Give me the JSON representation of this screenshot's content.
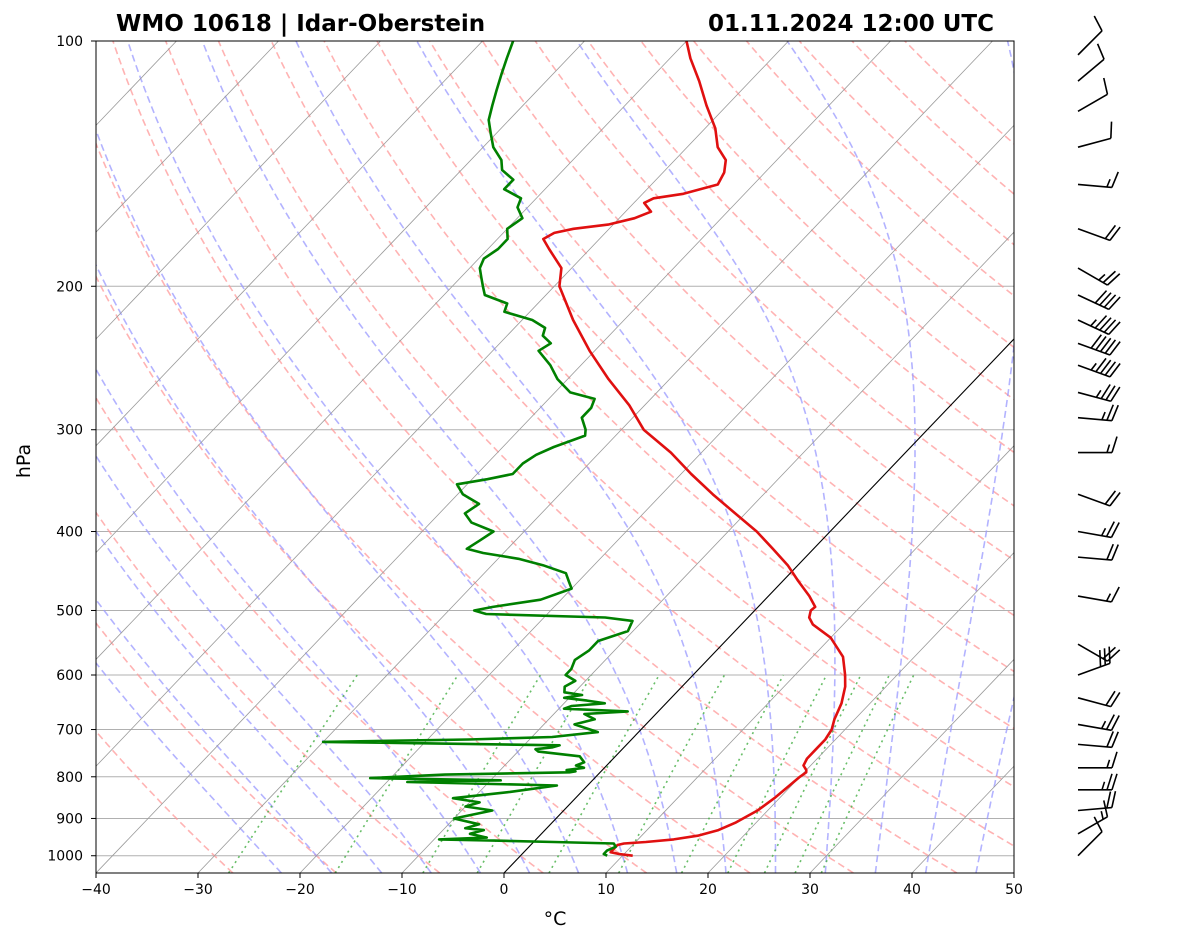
{
  "header": {
    "station_title": "WMO 10618 | Idar-Oberstein",
    "time_title": "01.11.2024 12:00 UTC"
  },
  "chart_data": {
    "type": "line",
    "subtype": "skew-T log-p diagram",
    "xlabel": "°C",
    "ylabel": "hPa",
    "xlim": [
      -40,
      50
    ],
    "ylim": [
      1050,
      100
    ],
    "y_scale": "log",
    "x_ticks": [
      "−40",
      "−30",
      "−20",
      "−10",
      "0",
      "10",
      "20",
      "30",
      "40",
      "50"
    ],
    "y_ticks": [
      "100",
      "200",
      "300",
      "400",
      "500",
      "600",
      "700",
      "800",
      "900",
      "1000"
    ],
    "grid": true,
    "reference_lines": {
      "isotherms_degC": [
        -120,
        -110,
        -100,
        -90,
        -80,
        -70,
        -60,
        -50,
        -40,
        -30,
        -20,
        -10,
        0,
        10,
        20,
        30,
        40,
        50
      ],
      "highlighted_isotherm_degC": 0,
      "dry_adiabats_theta_degC": [
        -30,
        -20,
        -10,
        0,
        10,
        20,
        30,
        40,
        50,
        60,
        70,
        80,
        90,
        100,
        110,
        120,
        130,
        140,
        150,
        160,
        170,
        180
      ],
      "moist_adiabats_degC": [
        -25,
        -20,
        -15,
        -10,
        -5,
        0,
        5,
        10,
        15,
        20,
        25,
        30,
        35,
        40,
        45,
        50
      ],
      "mixing_ratio_lines_gkg": [
        0.4,
        1,
        2,
        3,
        5,
        8,
        12,
        16,
        20,
        24,
        28
      ],
      "colors": {
        "isotherm": "#a9a9a9",
        "dry_adiabat": "#ff9999",
        "moist_adiabat": "#9999ff",
        "mixing_ratio": "#4db34d",
        "zero_isotherm": "#000000"
      }
    },
    "series": [
      {
        "role": "temperature",
        "color": "#e01010",
        "points": [
          [
            1000,
            11.0
          ],
          [
            995,
            9.5
          ],
          [
            990,
            8.5
          ],
          [
            980,
            8.5
          ],
          [
            970,
            8.5
          ],
          [
            966,
            9.0
          ],
          [
            962,
            11.0
          ],
          [
            955,
            13.5
          ],
          [
            945,
            15.5
          ],
          [
            930,
            17.0
          ],
          [
            910,
            18.0
          ],
          [
            880,
            19.0
          ],
          [
            850,
            19.5
          ],
          [
            820,
            19.8
          ],
          [
            800,
            20.0
          ],
          [
            790,
            20.2
          ],
          [
            785,
            20.0
          ],
          [
            775,
            19.3
          ],
          [
            760,
            19.0
          ],
          [
            740,
            19.0
          ],
          [
            720,
            19.0
          ],
          [
            700,
            18.7
          ],
          [
            680,
            18.0
          ],
          [
            650,
            17.2
          ],
          [
            620,
            16.0
          ],
          [
            600,
            14.9
          ],
          [
            570,
            13.0
          ],
          [
            540,
            10.0
          ],
          [
            520,
            7.0
          ],
          [
            510,
            6.0
          ],
          [
            500,
            5.5
          ],
          [
            495,
            5.6
          ],
          [
            480,
            4.0
          ],
          [
            460,
            1.5
          ],
          [
            440,
            -1.0
          ],
          [
            420,
            -4.0
          ],
          [
            400,
            -7.2
          ],
          [
            380,
            -11.0
          ],
          [
            360,
            -15.0
          ],
          [
            340,
            -19.0
          ],
          [
            320,
            -23.0
          ],
          [
            300,
            -27.8
          ],
          [
            280,
            -31.5
          ],
          [
            260,
            -36.0
          ],
          [
            240,
            -40.5
          ],
          [
            220,
            -45.0
          ],
          [
            200,
            -49.5
          ],
          [
            190,
            -51.0
          ],
          [
            180,
            -54.0
          ],
          [
            175,
            -55.5
          ],
          [
            172,
            -55.0
          ],
          [
            170,
            -53.5
          ],
          [
            168,
            -50.5
          ],
          [
            165,
            -48.5
          ],
          [
            162,
            -47.5
          ],
          [
            158,
            -49.0
          ],
          [
            156,
            -48.5
          ],
          [
            154,
            -46.0
          ],
          [
            150,
            -43.5
          ],
          [
            145,
            -44.0
          ],
          [
            140,
            -45.0
          ],
          [
            135,
            -47.0
          ],
          [
            128,
            -49.0
          ],
          [
            120,
            -52.0
          ],
          [
            112,
            -55.0
          ],
          [
            105,
            -58.0
          ],
          [
            100,
            -60.0
          ]
        ]
      },
      {
        "role": "dewpoint",
        "color": "#008000",
        "points": [
          [
            1000,
            8.5
          ],
          [
            995,
            8.0
          ],
          [
            985,
            8.0
          ],
          [
            975,
            8.5
          ],
          [
            966,
            8.0
          ],
          [
            962,
            2.0
          ],
          [
            958,
            -4.0
          ],
          [
            955,
            -9.5
          ],
          [
            950,
            -5.0
          ],
          [
            940,
            -7.0
          ],
          [
            930,
            -6.0
          ],
          [
            925,
            -8.0
          ],
          [
            915,
            -7.0
          ],
          [
            900,
            -10.0
          ],
          [
            880,
            -7.0
          ],
          [
            870,
            -10.0
          ],
          [
            860,
            -9.0
          ],
          [
            850,
            -12.0
          ],
          [
            835,
            -7.0
          ],
          [
            820,
            -3.0
          ],
          [
            812,
            -18.0
          ],
          [
            808,
            -9.0
          ],
          [
            803,
            -22.0
          ],
          [
            795,
            -15.0
          ],
          [
            790,
            -3.0
          ],
          [
            788,
            -2.5
          ],
          [
            785,
            -3.5
          ],
          [
            780,
            -2.0
          ],
          [
            775,
            -3.0
          ],
          [
            768,
            -2.5
          ],
          [
            755,
            -3.5
          ],
          [
            745,
            -8.0
          ],
          [
            740,
            -8.5
          ],
          [
            736,
            -7.0
          ],
          [
            732,
            -6.5
          ],
          [
            725,
            -30.0
          ],
          [
            720,
            -16.0
          ],
          [
            715,
            -8.0
          ],
          [
            705,
            -4.0
          ],
          [
            700,
            -5.0
          ],
          [
            690,
            -7.0
          ],
          [
            680,
            -5.5
          ],
          [
            670,
            -7.0
          ],
          [
            665,
            -3.0
          ],
          [
            660,
            -9.5
          ],
          [
            655,
            -9.0
          ],
          [
            650,
            -6.0
          ],
          [
            645,
            -8.0
          ],
          [
            640,
            -10.5
          ],
          [
            635,
            -9.0
          ],
          [
            630,
            -11.0
          ],
          [
            620,
            -11.5
          ],
          [
            610,
            -11.0
          ],
          [
            600,
            -12.5
          ],
          [
            590,
            -12.5
          ],
          [
            575,
            -13.0
          ],
          [
            560,
            -12.5
          ],
          [
            545,
            -12.5
          ],
          [
            530,
            -10.5
          ],
          [
            515,
            -11.0
          ],
          [
            510,
            -14.0
          ],
          [
            505,
            -26.0
          ],
          [
            500,
            -27.5
          ],
          [
            495,
            -26.0
          ],
          [
            485,
            -22.0
          ],
          [
            470,
            -20.0
          ],
          [
            460,
            -21.0
          ],
          [
            450,
            -22.0
          ],
          [
            440,
            -25.0
          ],
          [
            432,
            -28.0
          ],
          [
            425,
            -32.0
          ],
          [
            420,
            -34.0
          ],
          [
            410,
            -33.5
          ],
          [
            400,
            -33.0
          ],
          [
            390,
            -36.0
          ],
          [
            380,
            -37.5
          ],
          [
            370,
            -37.0
          ],
          [
            360,
            -39.5
          ],
          [
            350,
            -41.0
          ],
          [
            345,
            -38.5
          ],
          [
            340,
            -36.5
          ],
          [
            330,
            -36.5
          ],
          [
            322,
            -36.0
          ],
          [
            315,
            -35.0
          ],
          [
            305,
            -33.0
          ],
          [
            300,
            -33.5
          ],
          [
            290,
            -35.0
          ],
          [
            282,
            -35.0
          ],
          [
            275,
            -35.5
          ],
          [
            270,
            -38.5
          ],
          [
            260,
            -41.0
          ],
          [
            250,
            -43.0
          ],
          [
            240,
            -45.5
          ],
          [
            235,
            -45.0
          ],
          [
            230,
            -46.5
          ],
          [
            225,
            -47.0
          ],
          [
            220,
            -49.0
          ],
          [
            215,
            -52.5
          ],
          [
            210,
            -53.0
          ],
          [
            205,
            -56.0
          ],
          [
            200,
            -57.0
          ],
          [
            195,
            -58.0
          ],
          [
            190,
            -59.0
          ],
          [
            185,
            -59.5
          ],
          [
            180,
            -59.0
          ],
          [
            175,
            -59.0
          ],
          [
            170,
            -60.0
          ],
          [
            165,
            -59.5
          ],
          [
            160,
            -61.0
          ],
          [
            156,
            -61.5
          ],
          [
            152,
            -64.0
          ],
          [
            148,
            -64.0
          ],
          [
            144,
            -66.0
          ],
          [
            140,
            -67.0
          ],
          [
            135,
            -69.0
          ],
          [
            130,
            -70.5
          ],
          [
            125,
            -72.0
          ],
          [
            120,
            -73.0
          ],
          [
            115,
            -74.0
          ],
          [
            110,
            -75.0
          ],
          [
            105,
            -76.0
          ],
          [
            100,
            -77.0
          ]
        ]
      }
    ],
    "wind_barbs": [
      {
        "p": 1000,
        "dir_deg": 225,
        "speed_kt": 10
      },
      {
        "p": 940,
        "dir_deg": 240,
        "speed_kt": 15
      },
      {
        "p": 880,
        "dir_deg": 265,
        "speed_kt": 20
      },
      {
        "p": 830,
        "dir_deg": 270,
        "speed_kt": 25
      },
      {
        "p": 780,
        "dir_deg": 270,
        "speed_kt": 15
      },
      {
        "p": 730,
        "dir_deg": 275,
        "speed_kt": 20
      },
      {
        "p": 690,
        "dir_deg": 280,
        "speed_kt": 25
      },
      {
        "p": 640,
        "dir_deg": 285,
        "speed_kt": 20
      },
      {
        "p": 600,
        "dir_deg": 250,
        "speed_kt": 30
      },
      {
        "p": 550,
        "dir_deg": 300,
        "speed_kt": 20
      },
      {
        "p": 480,
        "dir_deg": 280,
        "speed_kt": 15
      },
      {
        "p": 430,
        "dir_deg": 275,
        "speed_kt": 20
      },
      {
        "p": 400,
        "dir_deg": 280,
        "speed_kt": 25
      },
      {
        "p": 360,
        "dir_deg": 290,
        "speed_kt": 20
      },
      {
        "p": 320,
        "dir_deg": 270,
        "speed_kt": 15
      },
      {
        "p": 290,
        "dir_deg": 275,
        "speed_kt": 25
      },
      {
        "p": 270,
        "dir_deg": 285,
        "speed_kt": 35
      },
      {
        "p": 250,
        "dir_deg": 290,
        "speed_kt": 45
      },
      {
        "p": 235,
        "dir_deg": 290,
        "speed_kt": 50
      },
      {
        "p": 220,
        "dir_deg": 295,
        "speed_kt": 45
      },
      {
        "p": 205,
        "dir_deg": 295,
        "speed_kt": 40
      },
      {
        "p": 190,
        "dir_deg": 300,
        "speed_kt": 25
      },
      {
        "p": 170,
        "dir_deg": 290,
        "speed_kt": 20
      },
      {
        "p": 150,
        "dir_deg": 275,
        "speed_kt": 15
      },
      {
        "p": 135,
        "dir_deg": 255,
        "speed_kt": 10
      },
      {
        "p": 122,
        "dir_deg": 240,
        "speed_kt": 10
      },
      {
        "p": 112,
        "dir_deg": 230,
        "speed_kt": 10
      },
      {
        "p": 104,
        "dir_deg": 225,
        "speed_kt": 10
      }
    ]
  }
}
